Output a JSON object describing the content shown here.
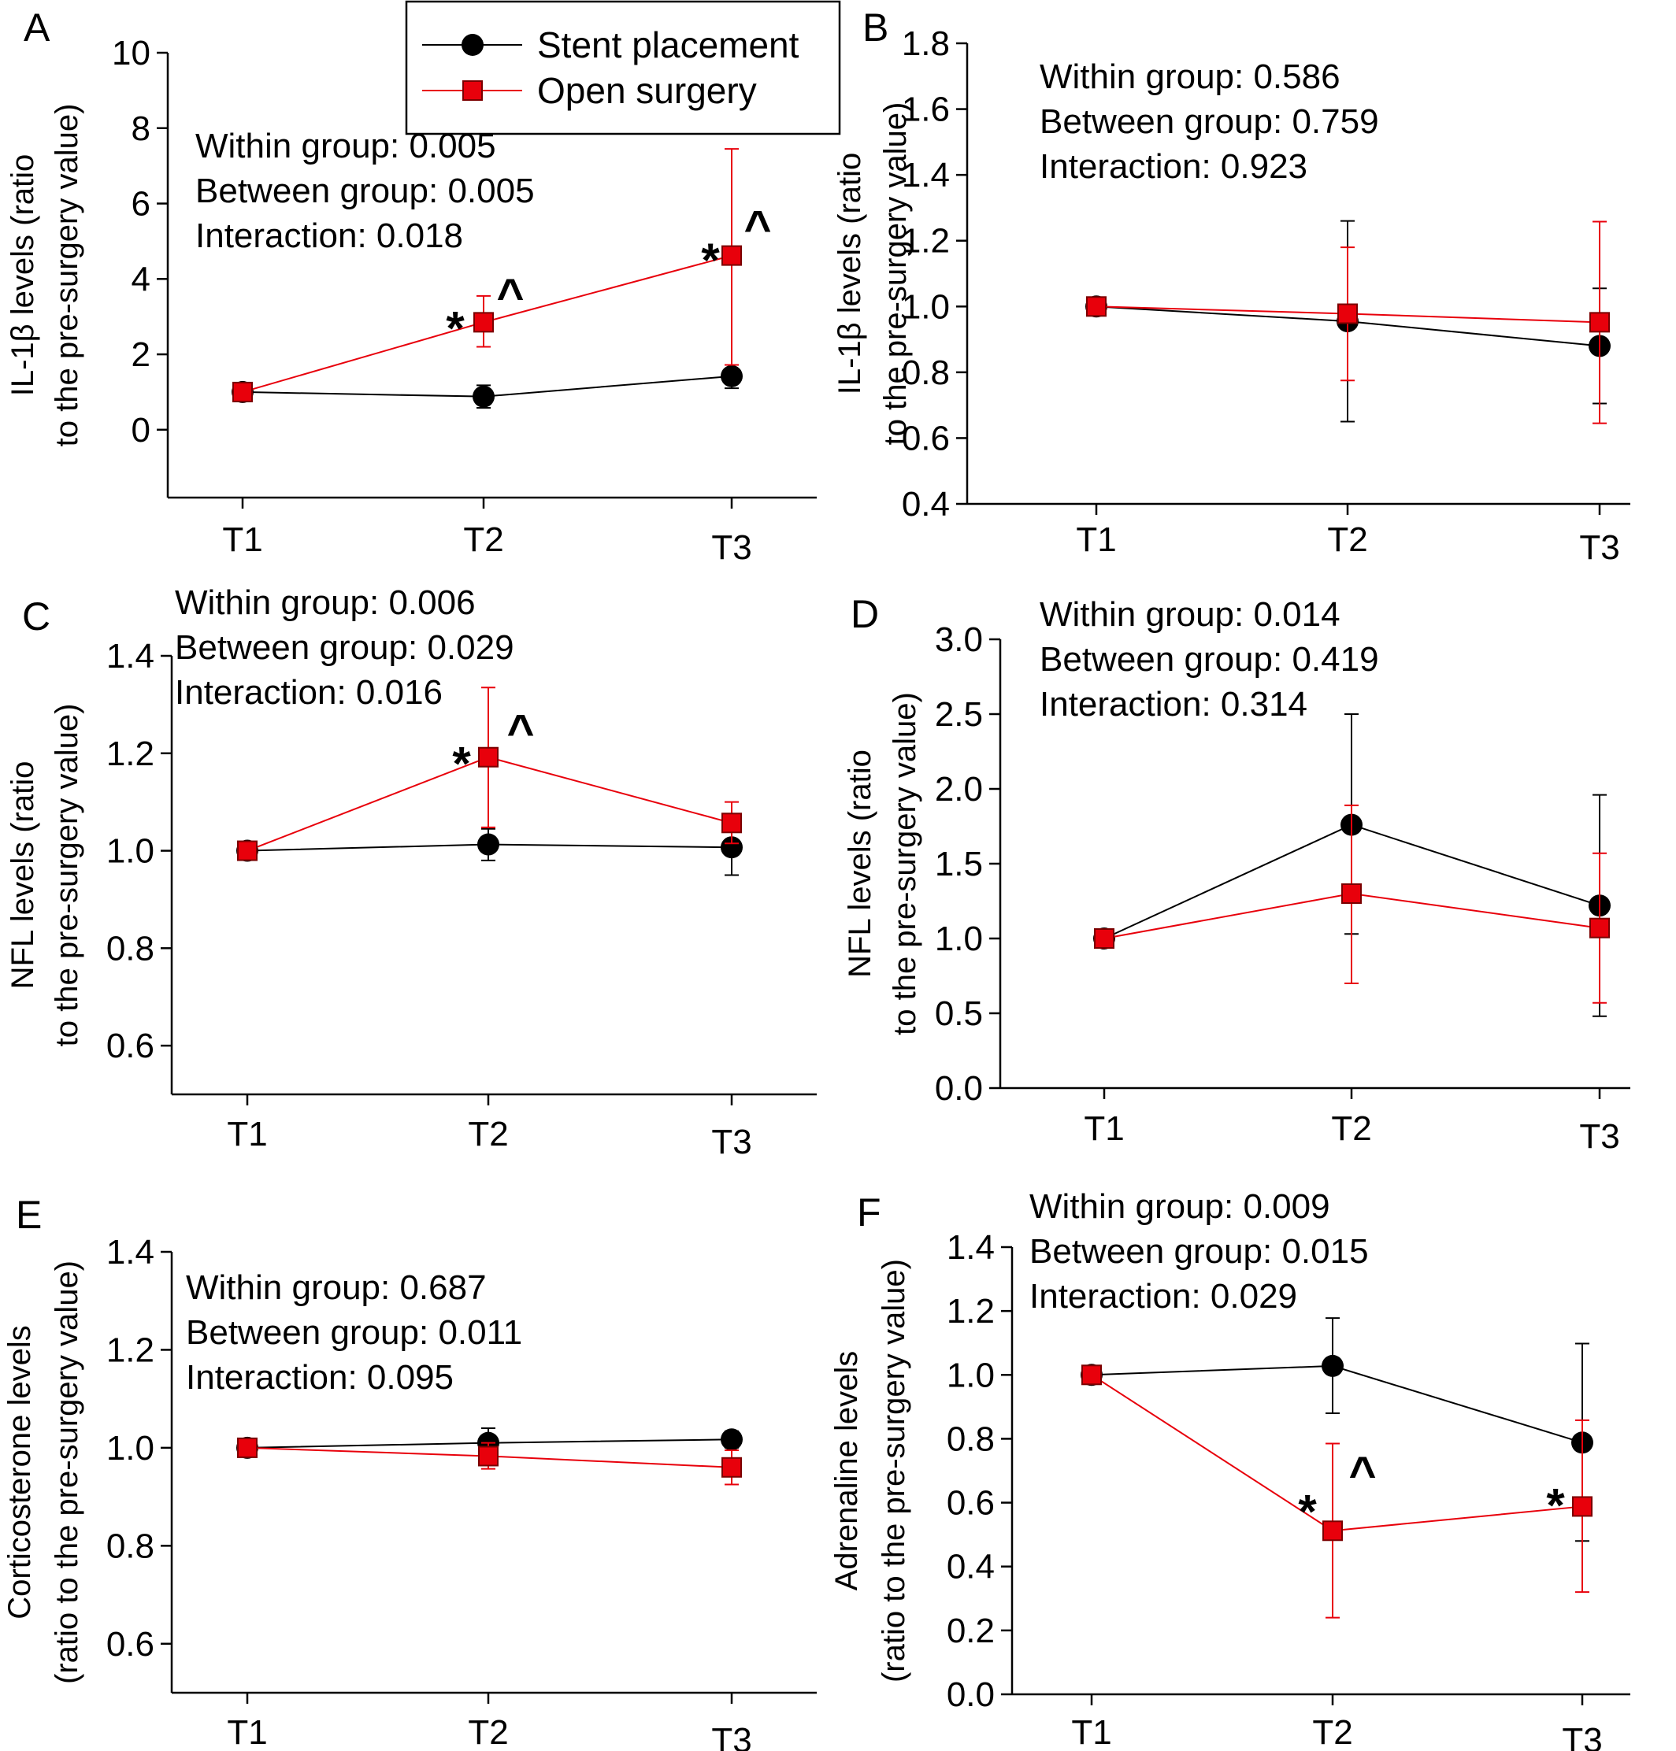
{
  "legend": {
    "items": [
      {
        "name": "Stent placement",
        "color": "#000000",
        "marker": "circle"
      },
      {
        "name": "Open surgery",
        "color": "#e8000b",
        "marker": "square"
      }
    ]
  },
  "chart_data": [
    {
      "panel": "A",
      "type": "line",
      "categories": [
        "T1",
        "T2",
        "T3"
      ],
      "ylabel": [
        "IL-1β levels (ratio",
        "to the pre-surgery value)"
      ],
      "ylim": [
        -1.8,
        10
      ],
      "yticks": [
        0,
        2,
        4,
        6,
        8,
        10
      ],
      "tick_decimals": 0,
      "stats": [
        "Within group: 0.005",
        "Between group: 0.005",
        "Interaction: 0.018"
      ],
      "series": [
        {
          "name": "Stent placement",
          "values": [
            1.0,
            0.88,
            1.42
          ],
          "err_low": [
            0.9,
            0.58,
            1.1
          ],
          "err_high": [
            1.1,
            1.18,
            1.72
          ]
        },
        {
          "name": "Open surgery",
          "values": [
            1.0,
            2.85,
            4.62
          ],
          "err_low": [
            0.9,
            2.2,
            1.72
          ],
          "err_high": [
            1.1,
            3.55,
            7.45
          ]
        }
      ],
      "annotations": [
        {
          "text": "*",
          "category": "T2",
          "y": 3.1
        },
        {
          "text": "^",
          "category": "T2",
          "y": 3.3
        },
        {
          "text": "*",
          "category": "T3",
          "y": 4.9
        },
        {
          "text": "^",
          "category": "T3",
          "y": 5.1
        }
      ]
    },
    {
      "panel": "B",
      "type": "line",
      "categories": [
        "T1",
        "T2",
        "T3"
      ],
      "ylabel": [
        "IL-1β levels (ratio",
        "to the pre-surgery value)"
      ],
      "ylim": [
        0.4,
        1.8
      ],
      "yticks": [
        0.4,
        0.6,
        0.8,
        1.0,
        1.2,
        1.4,
        1.6,
        1.8
      ],
      "tick_decimals": 1,
      "stats": [
        "Within group: 0.586",
        "Between group: 0.759",
        "Interaction: 0.923"
      ],
      "series": [
        {
          "name": "Stent placement",
          "values": [
            1.0,
            0.955,
            0.88
          ],
          "err_low": [
            0.99,
            0.65,
            0.705
          ],
          "err_high": [
            1.01,
            1.26,
            1.055
          ]
        },
        {
          "name": "Open surgery",
          "values": [
            1.0,
            0.978,
            0.952
          ],
          "err_low": [
            0.99,
            0.775,
            0.645
          ],
          "err_high": [
            1.01,
            1.18,
            1.258
          ]
        }
      ],
      "annotations": []
    },
    {
      "panel": "C",
      "type": "line",
      "categories": [
        "T1",
        "T2",
        "T3"
      ],
      "ylabel": [
        "NFL levels (ratio",
        "to the pre-surgery value)"
      ],
      "ylim": [
        0.5,
        1.4
      ],
      "yticks": [
        0.6,
        0.8,
        1.0,
        1.2,
        1.4
      ],
      "tick_decimals": 1,
      "stats": [
        "Within group: 0.006",
        "Between group: 0.029",
        "Interaction: 0.016"
      ],
      "series": [
        {
          "name": "Stent placement",
          "values": [
            1.0,
            1.013,
            1.007
          ],
          "err_low": [
            0.995,
            0.98,
            0.95
          ],
          "err_high": [
            1.005,
            1.045,
            1.06
          ]
        },
        {
          "name": "Open surgery",
          "values": [
            1.0,
            1.192,
            1.057
          ],
          "err_low": [
            0.995,
            1.048,
            1.015
          ],
          "err_high": [
            1.005,
            1.335,
            1.1
          ]
        }
      ],
      "annotations": [
        {
          "text": "*",
          "category": "T2",
          "y": 1.21
        },
        {
          "text": "^",
          "category": "T2",
          "y": 1.225
        }
      ]
    },
    {
      "panel": "D",
      "type": "line",
      "categories": [
        "T1",
        "T2",
        "T3"
      ],
      "ylabel": [
        "NFL levels (ratio",
        "to the pre-surgery value)"
      ],
      "ylim": [
        0.0,
        3.0
      ],
      "yticks": [
        0.0,
        0.5,
        1.0,
        1.5,
        2.0,
        2.5,
        3.0
      ],
      "tick_decimals": 1,
      "stats": [
        "Within group: 0.014",
        "Between group: 0.419",
        "Interaction: 0.314"
      ],
      "series": [
        {
          "name": "Stent placement",
          "values": [
            1.0,
            1.76,
            1.22
          ],
          "err_low": [
            0.97,
            1.03,
            0.48
          ],
          "err_high": [
            1.03,
            2.5,
            1.96
          ]
        },
        {
          "name": "Open surgery",
          "values": [
            1.0,
            1.3,
            1.07
          ],
          "err_low": [
            0.97,
            0.7,
            0.57
          ],
          "err_high": [
            1.03,
            1.89,
            1.57
          ]
        }
      ],
      "annotations": []
    },
    {
      "panel": "E",
      "type": "line",
      "categories": [
        "T1",
        "T2",
        "T3"
      ],
      "ylabel": [
        "Corticosterone levels",
        "(ratio to the pre-surgery value)"
      ],
      "ylim": [
        0.5,
        1.4
      ],
      "yticks": [
        0.6,
        0.8,
        1.0,
        1.2,
        1.4
      ],
      "tick_decimals": 1,
      "stats": [
        "Within group: 0.687",
        "Between group: 0.011",
        "Interaction: 0.095"
      ],
      "series": [
        {
          "name": "Stent placement",
          "values": [
            1.0,
            1.01,
            1.017
          ],
          "err_low": [
            0.995,
            0.98,
            1.0
          ],
          "err_high": [
            1.005,
            1.04,
            1.034
          ]
        },
        {
          "name": "Open surgery",
          "values": [
            1.0,
            0.983,
            0.96
          ],
          "err_low": [
            0.995,
            0.957,
            0.925
          ],
          "err_high": [
            1.005,
            1.01,
            0.995
          ]
        }
      ],
      "annotations": []
    },
    {
      "panel": "F",
      "type": "line",
      "categories": [
        "T1",
        "T2",
        "T3"
      ],
      "ylabel": [
        "Adrenaline levels",
        "(ratio to the pre-surgery value)"
      ],
      "ylim": [
        0.0,
        1.4
      ],
      "yticks": [
        0.0,
        0.2,
        0.4,
        0.6,
        0.8,
        1.0,
        1.2,
        1.4
      ],
      "tick_decimals": 1,
      "stats": [
        "Within group: 0.009",
        "Between group: 0.015",
        "Interaction: 0.029"
      ],
      "series": [
        {
          "name": "Stent placement",
          "values": [
            1.0,
            1.028,
            0.788
          ],
          "err_low": [
            0.99,
            0.88,
            0.48
          ],
          "err_high": [
            1.01,
            1.178,
            1.098
          ]
        },
        {
          "name": "Open surgery",
          "values": [
            1.0,
            0.512,
            0.588
          ],
          "err_low": [
            0.99,
            0.24,
            0.32
          ],
          "err_high": [
            1.01,
            0.785,
            0.858
          ]
        }
      ],
      "annotations": [
        {
          "text": "*",
          "category": "T2",
          "y": 0.62
        },
        {
          "text": "^",
          "category": "T2",
          "y": 0.66
        },
        {
          "text": "*",
          "category": "T3",
          "y": 0.64
        }
      ]
    }
  ]
}
